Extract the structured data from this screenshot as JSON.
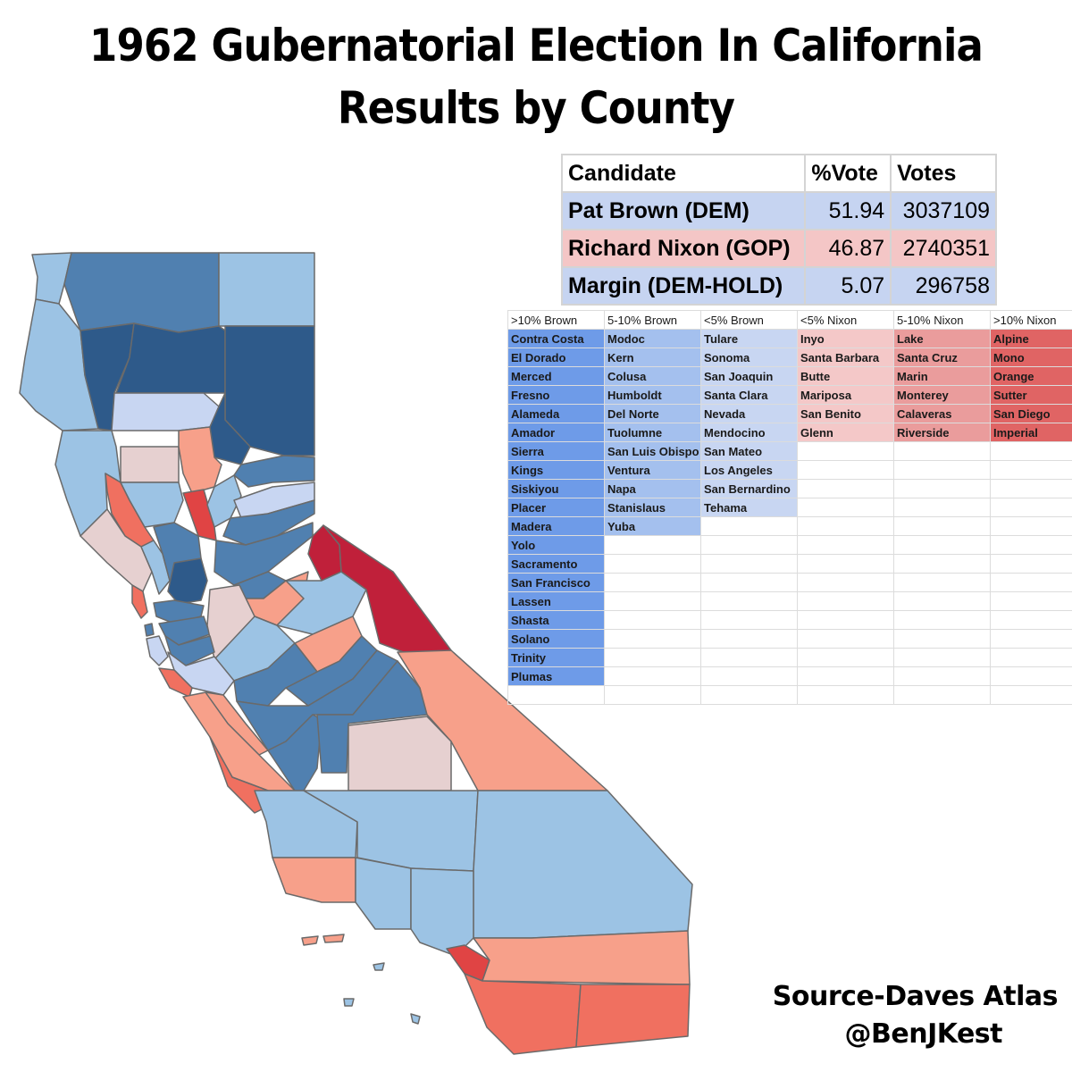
{
  "title": {
    "line1": "1962 Gubernatorial Election In California",
    "line2": "Results by County"
  },
  "colors": {
    "brown_over10": "#6e9be8",
    "brown_5_10": "#a4c0ee",
    "brown_under5": "#c8d6f2",
    "nixon_under5": "#f4c8c8",
    "nixon_5_10": "#ea9c9c",
    "nixon_over10": "#e06464",
    "map_dark_blue": "#2e5a8a",
    "map_mid_blue": "#5080b0",
    "map_light_blue": "#9cc3e4",
    "map_pale_red": "#e6d0d0",
    "map_salmon": "#f7a08a",
    "map_coral": "#f07060",
    "map_red": "#e04444",
    "map_crimson": "#c0203a"
  },
  "summary": {
    "headers": [
      "Candidate",
      "%Vote",
      "Votes"
    ],
    "rows": [
      {
        "candidate": "Pat Brown (DEM)",
        "pct": "51.94",
        "votes": "3037109",
        "party": "dem"
      },
      {
        "candidate": "Richard Nixon (GOP)",
        "pct": "46.87",
        "votes": "2740351",
        "party": "gop"
      },
      {
        "candidate": "Margin (DEM-HOLD)",
        "pct": "5.07",
        "votes": "296758",
        "party": "dem"
      }
    ]
  },
  "categories": [
    {
      "label": ">10% Brown",
      "color": "#6e9be8",
      "counties": [
        "Contra Costa",
        "El Dorado",
        "Merced",
        "Fresno",
        "Alameda",
        "Amador",
        "Sierra",
        "Kings",
        "Siskiyou",
        "Placer",
        "Madera",
        "Yolo",
        "Sacramento",
        "San Francisco",
        "Lassen",
        "Shasta",
        "Solano",
        "Trinity",
        "Plumas"
      ]
    },
    {
      "label": "5-10% Brown",
      "color": "#a4c0ee",
      "counties": [
        "Modoc",
        "Kern",
        "Colusa",
        "Humboldt",
        "Del Norte",
        "Tuolumne",
        "San Luis Obispo",
        "Ventura",
        "Napa",
        "Stanislaus",
        "Yuba"
      ]
    },
    {
      "label": "<5% Brown",
      "color": "#c8d6f2",
      "counties": [
        "Tulare",
        "Sonoma",
        "San Joaquin",
        "Santa Clara",
        "Nevada",
        "Mendocino",
        "San Mateo",
        "Los Angeles",
        "San Bernardino",
        "Tehama"
      ]
    },
    {
      "label": "<5% Nixon",
      "color": "#f4c8c8",
      "counties": [
        "Inyo",
        "Santa Barbara",
        "Butte",
        "Mariposa",
        "San Benito",
        "Glenn"
      ]
    },
    {
      "label": "5-10% Nixon",
      "color": "#ea9c9c",
      "counties": [
        "Lake",
        "Santa Cruz",
        "Marin",
        "Monterey",
        "Calaveras",
        "Riverside"
      ]
    },
    {
      "label": ">10% Nixon",
      "color": "#e06464",
      "counties": [
        "Alpine",
        "Mono",
        "Orange",
        "Sutter",
        "San Diego",
        "Imperial"
      ]
    }
  ],
  "credit": {
    "line1": "Source-Daves Atlas",
    "line2": "@BenJKest"
  }
}
